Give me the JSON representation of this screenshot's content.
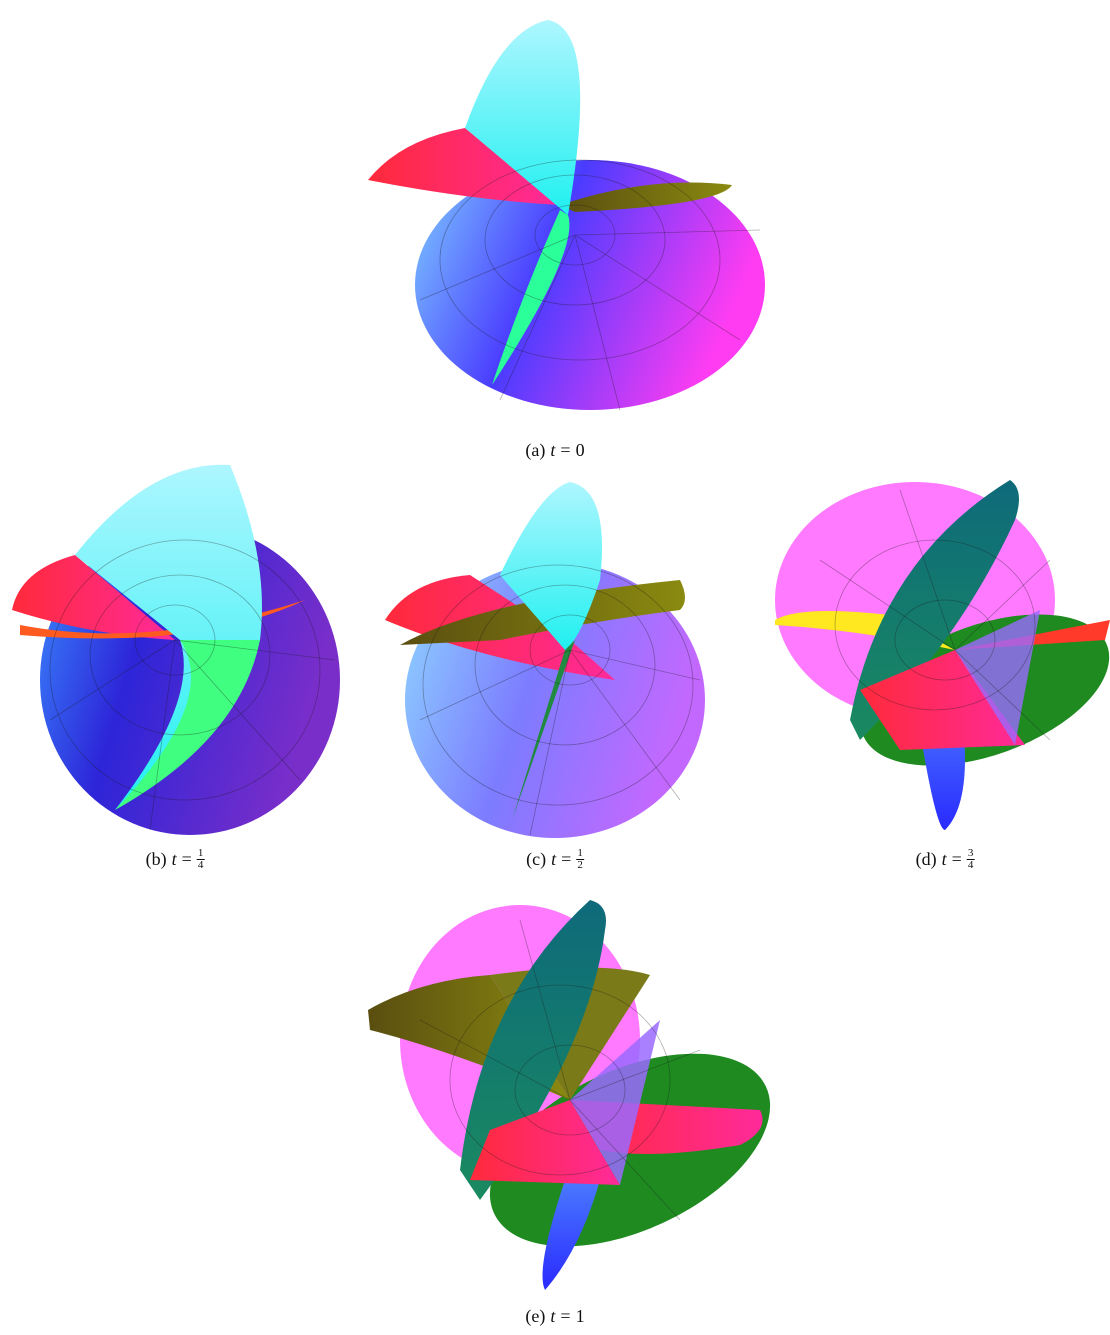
{
  "figures": [
    {
      "label": "(a)",
      "variable": "t",
      "relation": "=",
      "value": "0"
    },
    {
      "label": "(b)",
      "variable": "t",
      "relation": "=",
      "numerator": "1",
      "denominator": "4"
    },
    {
      "label": "(c)",
      "variable": "t",
      "relation": "=",
      "numerator": "1",
      "denominator": "2"
    },
    {
      "label": "(d)",
      "variable": "t",
      "relation": "=",
      "numerator": "3",
      "denominator": "4"
    },
    {
      "label": "(e)",
      "variable": "t",
      "relation": "=",
      "value": "1"
    }
  ]
}
